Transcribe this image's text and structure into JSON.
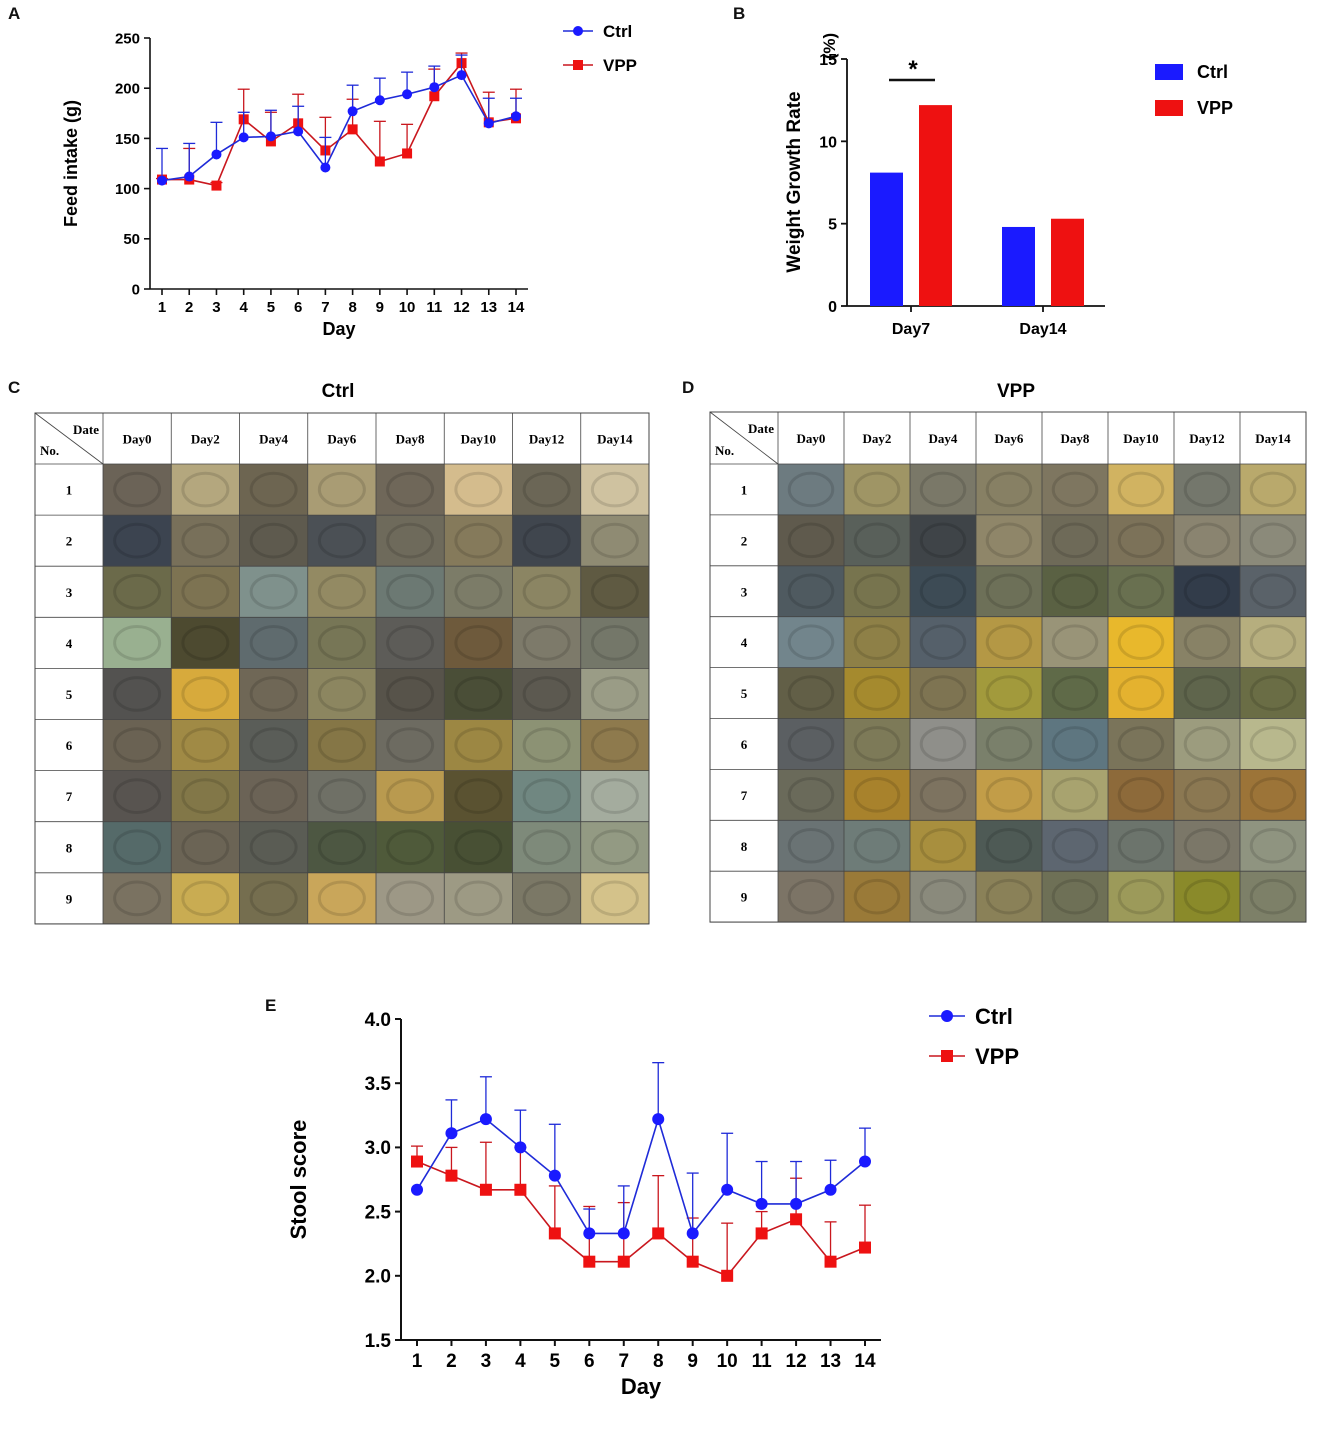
{
  "colors": {
    "ctrl": "#1a1aff",
    "vpp": "#ee1111",
    "ctrl_line": "#1f2bd8",
    "vpp_line": "#c9171e",
    "axis": "#111111",
    "grid_line": "#444444"
  },
  "panel_labels": {
    "a": "A",
    "b": "B",
    "c": "C",
    "d": "D",
    "e": "E"
  },
  "chart_data": [
    {
      "id": "A",
      "type": "line",
      "title": "",
      "xlabel": "Day",
      "ylabel": "Feed intake (g)",
      "x": [
        1,
        2,
        3,
        4,
        5,
        6,
        7,
        8,
        9,
        10,
        11,
        12,
        13,
        14
      ],
      "x_tick_labels": [
        "1",
        "2",
        "3",
        "4",
        "5",
        "6",
        "7",
        "8",
        "9",
        "10",
        "11",
        "12",
        "13",
        "14"
      ],
      "ylim": [
        0,
        250
      ],
      "y_ticks": [
        0,
        50,
        100,
        150,
        200,
        250
      ],
      "y_tick_labels": [
        "0",
        "50",
        "100",
        "150",
        "200",
        "250"
      ],
      "legend_position": "top-right outside",
      "series": [
        {
          "name": "Ctrl",
          "marker": "circle",
          "values": [
            108,
            112,
            134,
            151,
            152,
            157,
            121,
            177,
            188,
            194,
            201,
            213,
            165,
            172
          ],
          "error_upper": [
            140,
            145,
            166,
            176,
            178,
            182,
            151,
            203,
            210,
            216,
            222,
            233,
            190,
            190
          ]
        },
        {
          "name": "VPP",
          "marker": "square",
          "values": [
            109,
            109,
            103,
            169,
            147,
            165,
            138,
            159,
            127,
            135,
            192,
            225,
            166,
            170
          ],
          "error_upper": [
            110,
            140,
            106,
            199,
            176,
            194,
            171,
            189,
            167,
            164,
            219,
            235,
            196,
            199
          ]
        }
      ]
    },
    {
      "id": "B",
      "type": "bar",
      "title": "",
      "xlabel": "",
      "ylabel": "Weight Growth Rate",
      "yunit": "(%)",
      "categories": [
        "Day7",
        "Day14"
      ],
      "ylim": [
        0,
        15
      ],
      "y_ticks": [
        0,
        5,
        10,
        15
      ],
      "y_tick_labels": [
        "0",
        "5",
        "10",
        "15"
      ],
      "legend_position": "right",
      "series": [
        {
          "name": "Ctrl",
          "values": [
            8.1,
            4.8
          ]
        },
        {
          "name": "VPP",
          "values": [
            12.2,
            5.3
          ]
        }
      ],
      "annotations": [
        {
          "text": "*",
          "category": "Day7"
        }
      ]
    },
    {
      "id": "E",
      "type": "line",
      "title": "",
      "xlabel": "Day",
      "ylabel": "Stool score",
      "x": [
        1,
        2,
        3,
        4,
        5,
        6,
        7,
        8,
        9,
        10,
        11,
        12,
        13,
        14
      ],
      "x_tick_labels": [
        "1",
        "2",
        "3",
        "4",
        "5",
        "6",
        "7",
        "8",
        "9",
        "10",
        "11",
        "12",
        "13",
        "14"
      ],
      "ylim": [
        1.5,
        4.0
      ],
      "y_ticks": [
        1.5,
        2.0,
        2.5,
        3.0,
        3.5,
        4.0
      ],
      "y_tick_labels": [
        "1.5",
        "2.0",
        "2.5",
        "3.0",
        "3.5",
        "4.0"
      ],
      "legend_position": "top-right outside",
      "series": [
        {
          "name": "Ctrl",
          "marker": "circle",
          "values": [
            2.67,
            3.11,
            3.22,
            3.0,
            2.78,
            2.33,
            2.33,
            3.22,
            2.33,
            2.67,
            2.56,
            2.56,
            2.67,
            2.89
          ],
          "error_upper": [
            2.67,
            3.37,
            3.55,
            3.29,
            3.18,
            2.52,
            2.7,
            3.66,
            2.8,
            3.11,
            2.89,
            2.89,
            2.9,
            3.15
          ]
        },
        {
          "name": "VPP",
          "marker": "square",
          "values": [
            2.89,
            2.78,
            2.67,
            2.67,
            2.33,
            2.11,
            2.11,
            2.33,
            2.11,
            2.0,
            2.33,
            2.44,
            2.11,
            2.22
          ],
          "error_upper": [
            3.01,
            3.0,
            3.04,
            3.0,
            2.7,
            2.54,
            2.57,
            2.78,
            2.45,
            2.41,
            2.5,
            2.76,
            2.42,
            2.55
          ]
        }
      ]
    }
  ],
  "photo_tables": [
    {
      "id": "C",
      "title": "Ctrl",
      "corner_top": "Date",
      "corner_bottom": "No.",
      "columns": [
        "Day0",
        "Day2",
        "Day4",
        "Day6",
        "Day8",
        "Day10",
        "Day12",
        "Day14"
      ],
      "rows": [
        "1",
        "2",
        "3",
        "4",
        "5",
        "6",
        "7",
        "8",
        "9"
      ],
      "cells": [
        [
          "#6b6357",
          "#b4a77e",
          "#6d6551",
          "#a99c74",
          "#6f6759",
          "#d4bc8d",
          "#6b6656",
          "#cfc2a0"
        ],
        [
          "#3c4450",
          "#78705a",
          "#5e5a4e",
          "#4b5055",
          "#6e6a5b",
          "#857a5b",
          "#40464e",
          "#8f8b73"
        ],
        [
          "#6b6a4a",
          "#7d7352",
          "#7f918c",
          "#938a63",
          "#6c7973",
          "#7c7c68",
          "#8b8563",
          "#5f5a42"
        ],
        [
          "#99b090",
          "#4d4a30",
          "#5f6b6e",
          "#777656",
          "#5d5c58",
          "#6e5a3c",
          "#7d7a6a",
          "#747769"
        ],
        [
          "#535250",
          "#d7aa3c",
          "#6f6756",
          "#8c8660",
          "#57534a",
          "#4a4e37",
          "#5c5950",
          "#9a9c86"
        ],
        [
          "#6a6253",
          "#a08a45",
          "#5a5d58",
          "#857646",
          "#6d6b61",
          "#9c8743",
          "#8c9274",
          "#8e7a4d"
        ],
        [
          "#585450",
          "#827748",
          "#6b6356",
          "#6f7066",
          "#b99a4f",
          "#5a5231",
          "#708781",
          "#a4ac9e"
        ],
        [
          "#556a69",
          "#6b6455",
          "#5a5c54",
          "#4d5742",
          "#4f5a3a",
          "#485034",
          "#7e8a7a",
          "#939a83"
        ],
        [
          "#7a7261",
          "#c9ac52",
          "#756e4f",
          "#c9a65a",
          "#9d9886",
          "#9d9a84",
          "#7b7866",
          "#d4c28a"
        ]
      ]
    },
    {
      "id": "D",
      "title": "VPP",
      "corner_top": "Date",
      "corner_bottom": "No.",
      "columns": [
        "Day0",
        "Day2",
        "Day4",
        "Day6",
        "Day8",
        "Day10",
        "Day12",
        "Day14"
      ],
      "rows": [
        "1",
        "2",
        "3",
        "4",
        "5",
        "6",
        "7",
        "8",
        "9"
      ],
      "cells": [
        [
          "#6d7b80",
          "#9f9565",
          "#7a7868",
          "#878064",
          "#7e7660",
          "#d1b361",
          "#74776c",
          "#b9a96c"
        ],
        [
          "#5f5a4d",
          "#59605a",
          "#3f4448",
          "#8f8669",
          "#6e6a58",
          "#7c7259",
          "#8a8470",
          "#8b8a7a"
        ],
        [
          "#4f5a60",
          "#77744e",
          "#3d4b55",
          "#6d7058",
          "#5a6143",
          "#697050",
          "#323c4a",
          "#5a6269"
        ],
        [
          "#72858c",
          "#8e8047",
          "#55606a",
          "#b49845",
          "#999478",
          "#e8b82c",
          "#888266",
          "#b6ae7e"
        ],
        [
          "#625f47",
          "#a58a2e",
          "#7e7452",
          "#a29a3c",
          "#5f6a48",
          "#e4b22f",
          "#5f654c",
          "#6a6d45"
        ],
        [
          "#5b5f62",
          "#7d7a58",
          "#8f8f8a",
          "#7a806b",
          "#5e7680",
          "#7a745a",
          "#9c9c7e",
          "#b8b88d"
        ],
        [
          "#6a6a5a",
          "#a8822c",
          "#7d7360",
          "#c29d48",
          "#a8a36f",
          "#8d6a3a",
          "#8b7852",
          "#9c7438"
        ],
        [
          "#6a7374",
          "#6e7c78",
          "#a88f3e",
          "#4e5a55",
          "#5d6670",
          "#6c746c",
          "#7b7768",
          "#8f9480"
        ],
        [
          "#7c7466",
          "#9a7a38",
          "#8a8a7c",
          "#8a8158",
          "#6e7056",
          "#9c9a5a",
          "#8a8a2a",
          "#7d8068"
        ]
      ]
    }
  ]
}
